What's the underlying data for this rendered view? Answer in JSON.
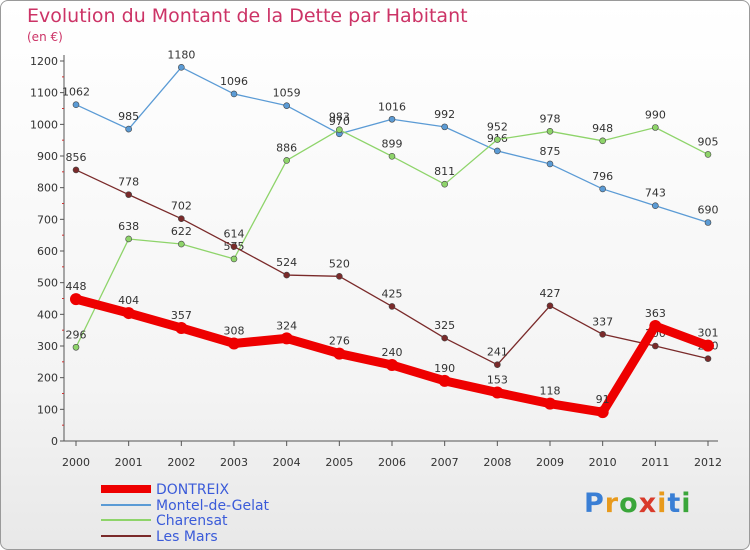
{
  "title": "Evolution du Montant de la Dette par Habitant",
  "unit": "(en €)",
  "logo": {
    "text": "Proxiti",
    "colors": [
      "#3a7fd5",
      "#e89a1c",
      "#3aa63a",
      "#d93a2a",
      "#e89a1c",
      "#3a7fd5",
      "#3aa63a"
    ]
  },
  "chart_data": {
    "type": "line",
    "x": [
      "2000",
      "2001",
      "2002",
      "2003",
      "2004",
      "2005",
      "2006",
      "2007",
      "2008",
      "2009",
      "2010",
      "2011",
      "2012"
    ],
    "ylim": [
      0,
      1200
    ],
    "yticks": [
      "0",
      "100",
      "200",
      "300",
      "400",
      "500",
      "600",
      "700",
      "800",
      "900",
      "1000",
      "1100",
      "1200"
    ],
    "grid": false,
    "legend": "bottom-left",
    "series": [
      {
        "name": "DONTREIX",
        "color": "#ee0000",
        "values": [
          448,
          404,
          357,
          308,
          324,
          276,
          240,
          190,
          153,
          118,
          91,
          363,
          301
        ],
        "labels": [
          "448",
          "404",
          "357",
          "308",
          "324",
          "276",
          "240",
          "190",
          "153",
          "118",
          "91",
          "363",
          "301"
        ]
      },
      {
        "name": "Montel-de-Gelat",
        "color": "#5b9bd5",
        "values": [
          1062,
          985,
          1180,
          1096,
          1059,
          970,
          1016,
          992,
          916,
          875,
          796,
          743,
          690
        ],
        "labels": [
          "1062",
          "985",
          "1180",
          "1096",
          "1059",
          "970",
          "1016",
          "992",
          "916",
          "875",
          "796",
          "743",
          "690"
        ]
      },
      {
        "name": "Charensat",
        "color": "#8ed46a",
        "values": [
          296,
          638,
          622,
          575,
          886,
          983,
          899,
          811,
          952,
          978,
          948,
          990,
          905
        ],
        "labels": [
          "296",
          "638",
          "622",
          "575",
          "886",
          "983",
          "899",
          "811",
          "952",
          "978",
          "948",
          "990",
          "905"
        ]
      },
      {
        "name": "Les Mars",
        "color": "#7a2a2a",
        "values": [
          856,
          778,
          702,
          614,
          524,
          520,
          425,
          325,
          241,
          427,
          337,
          300,
          260
        ],
        "labels": [
          "856",
          "778",
          "702",
          "614",
          "524",
          "520",
          "425",
          "325",
          "241",
          "427",
          "337",
          "300",
          "260"
        ]
      }
    ]
  }
}
